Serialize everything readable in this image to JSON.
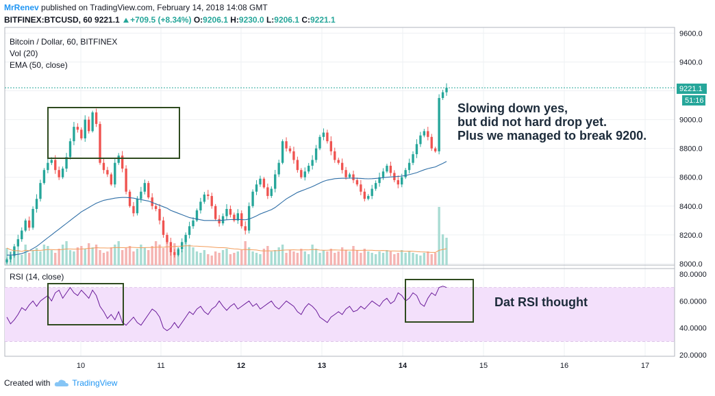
{
  "header": {
    "author": "MrRenev",
    "published": "published on TradingView.com, February 14, 2018 14:08 GMT",
    "symbol": "BITFINEX:BTCUSD, 60",
    "last": "9221.1",
    "change": "+709.5 (+8.34%)",
    "o_label": "O:",
    "o_value": "9206.1",
    "h_label": "H:",
    "h_value": "9230.0",
    "l_label": "L:",
    "l_value": "9206.1",
    "c_label": "C:",
    "c_value": "9221.1"
  },
  "legend": {
    "series": "Bitcoin / Dollar, 60, BITFINEX",
    "volume": "Vol (20)",
    "ema": "EMA (50, close)",
    "rsi": "RSI (14, close)"
  },
  "price_tag": "9221.1",
  "countdown": "51:16",
  "annotations": {
    "main": [
      "Slowing down yes,",
      "but did not hard drop yet.",
      "Plus we managed to break 9200."
    ],
    "rsi": "Dat RSI thought"
  },
  "footer": {
    "created": "Created with",
    "brand": "TradingView"
  },
  "colors": {
    "up": "#26a69a",
    "down": "#ef5350",
    "ema": "#2e6ea6",
    "vol_ma": "#f39c5a",
    "rsi_line": "#6a1b9a",
    "rsi_band": "#f3e0fb",
    "box": "#2e4a1e",
    "brand": "#2196f3"
  },
  "chart_data": [
    {
      "type": "candlestick",
      "title": "Bitcoin / Dollar, 60, BITFINEX",
      "x_ticks": [
        "10",
        "11",
        "12",
        "13",
        "14",
        "15",
        "16",
        "17"
      ],
      "y_ticks": [
        "9600.0",
        "9400.0",
        "9200.0",
        "9000.0",
        "8800.0",
        "8600.0",
        "8400.0",
        "8200.0",
        "8000.0"
      ],
      "ylim": [
        7990,
        9640
      ],
      "last_price": 9221.1,
      "close": [
        8030,
        8055,
        8120,
        8170,
        8230,
        8300,
        8250,
        8380,
        8450,
        8560,
        8650,
        8700,
        8720,
        8650,
        8600,
        8660,
        8740,
        8850,
        8950,
        8930,
        8870,
        9000,
        8920,
        9050,
        8970,
        8700,
        8650,
        8620,
        8550,
        8700,
        8750,
        8660,
        8500,
        8400,
        8350,
        8450,
        8500,
        8560,
        8460,
        8400,
        8380,
        8300,
        8200,
        8150,
        8080,
        8060,
        8100,
        8150,
        8200,
        8260,
        8300,
        8370,
        8430,
        8480,
        8470,
        8400,
        8310,
        8280,
        8330,
        8380,
        8340,
        8300,
        8350,
        8260,
        8230,
        8400,
        8500,
        8550,
        8590,
        8530,
        8470,
        8520,
        8620,
        8700,
        8850,
        8800,
        8780,
        8720,
        8650,
        8600,
        8640,
        8680,
        8720,
        8800,
        8880,
        8910,
        8850,
        8780,
        8720,
        8700,
        8650,
        8600,
        8620,
        8580,
        8550,
        8500,
        8450,
        8470,
        8520,
        8560,
        8600,
        8640,
        8680,
        8630,
        8580,
        8550,
        8600,
        8650,
        8700,
        8760,
        8830,
        8890,
        8920,
        8880,
        8800,
        8780,
        9150,
        9190,
        9221
      ],
      "ema50": [
        8060,
        8060,
        8062,
        8065,
        8070,
        8080,
        8090,
        8105,
        8120,
        8140,
        8160,
        8180,
        8200,
        8220,
        8240,
        8260,
        8280,
        8300,
        8320,
        8340,
        8360,
        8375,
        8390,
        8405,
        8420,
        8430,
        8440,
        8445,
        8450,
        8455,
        8458,
        8460,
        8460,
        8458,
        8455,
        8450,
        8445,
        8440,
        8435,
        8425,
        8415,
        8405,
        8395,
        8385,
        8370,
        8360,
        8350,
        8340,
        8330,
        8320,
        8315,
        8310,
        8305,
        8300,
        8300,
        8300,
        8300,
        8300,
        8302,
        8305,
        8306,
        8306,
        8307,
        8306,
        8305,
        8310,
        8320,
        8332,
        8345,
        8355,
        8365,
        8375,
        8390,
        8410,
        8430,
        8450,
        8465,
        8480,
        8495,
        8505,
        8515,
        8525,
        8535,
        8548,
        8560,
        8572,
        8580,
        8585,
        8590,
        8592,
        8593,
        8593,
        8594,
        8594,
        8593,
        8592,
        8590,
        8589,
        8590,
        8592,
        8594,
        8597,
        8600,
        8602,
        8604,
        8606,
        8608,
        8612,
        8618,
        8625,
        8632,
        8642,
        8652,
        8660,
        8666,
        8672,
        8684,
        8696,
        8710
      ],
      "volume": [
        25,
        20,
        18,
        22,
        15,
        30,
        18,
        22,
        25,
        20,
        30,
        28,
        22,
        18,
        24,
        30,
        35,
        22,
        20,
        26,
        28,
        24,
        32,
        26,
        30,
        22,
        18,
        20,
        26,
        30,
        35,
        22,
        25,
        28,
        20,
        24,
        30,
        26,
        22,
        28,
        35,
        30,
        25,
        40,
        28,
        32,
        26,
        22,
        38,
        30,
        26,
        20,
        18,
        22,
        16,
        14,
        20,
        18,
        22,
        24,
        16,
        18,
        20,
        22,
        35,
        26,
        20,
        18,
        16,
        24,
        28,
        20,
        22,
        26,
        30,
        18,
        22,
        20,
        18,
        24,
        20,
        16,
        30,
        24,
        18,
        22,
        20,
        24,
        18,
        20,
        26,
        22,
        20,
        28,
        22,
        18,
        24,
        20,
        18,
        16,
        20,
        18,
        22,
        20,
        16,
        18,
        22,
        18,
        20,
        18,
        16,
        14,
        18,
        20,
        16,
        18,
        85,
        45,
        40
      ]
    },
    {
      "type": "line",
      "title": "RSI (14, close)",
      "y_ticks": [
        "80.0000",
        "60.0000",
        "40.0000",
        "20.0000"
      ],
      "ylim": [
        19,
        84
      ],
      "band": [
        30,
        70
      ],
      "values": [
        48,
        43,
        46,
        50,
        55,
        53,
        57,
        60,
        56,
        60,
        62,
        64,
        60,
        66,
        68,
        62,
        66,
        70,
        66,
        64,
        68,
        65,
        62,
        68,
        64,
        56,
        52,
        47,
        50,
        46,
        52,
        44,
        42,
        45,
        48,
        44,
        42,
        46,
        50,
        54,
        52,
        48,
        40,
        38,
        40,
        44,
        40,
        44,
        48,
        52,
        50,
        54,
        56,
        52,
        50,
        54,
        56,
        60,
        56,
        53,
        56,
        58,
        54,
        56,
        58,
        60,
        56,
        58,
        54,
        56,
        58,
        60,
        56,
        54,
        57,
        60,
        58,
        56,
        52,
        50,
        55,
        58,
        56,
        53,
        48,
        46,
        44,
        48,
        50,
        52,
        50,
        54,
        56,
        52,
        53,
        56,
        54,
        57,
        60,
        58,
        56,
        60,
        62,
        58,
        60,
        66,
        64,
        60,
        62,
        66,
        64,
        58,
        56,
        62,
        66,
        64,
        70,
        71,
        70
      ]
    }
  ]
}
